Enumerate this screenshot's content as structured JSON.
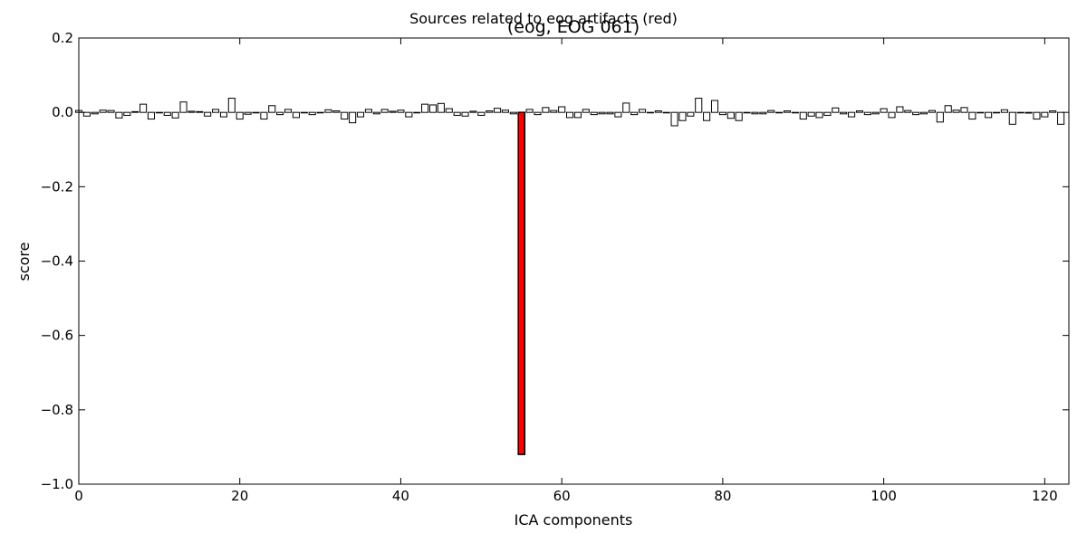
{
  "chart_data": {
    "type": "bar",
    "suptitle": "Sources related to eog artifacts (red)",
    "title": "(eog, EOG 061)",
    "xlabel": "ICA components",
    "ylabel": "score",
    "xlim": [
      0,
      123
    ],
    "ylim": [
      -1.0,
      0.2
    ],
    "xticks": [
      0,
      20,
      40,
      60,
      80,
      100,
      120
    ],
    "xtick_labels": [
      "0",
      "20",
      "40",
      "60",
      "80",
      "100",
      "120"
    ],
    "yticks": [
      0.2,
      0.0,
      -0.2,
      -0.4,
      -0.6,
      -0.8,
      -1.0
    ],
    "ytick_labels": [
      "0.2",
      "0.0",
      "−0.2",
      "−0.4",
      "−0.6",
      "−0.8",
      "−1.0"
    ],
    "bar_color": "#ffffff",
    "bar_edge_color": "#000000",
    "highlight_color": "#ff0000",
    "highlighted_components": [
      55
    ],
    "grid": false,
    "values": [
      0.005,
      -0.01,
      -0.004,
      0.006,
      0.005,
      -0.015,
      -0.008,
      0.002,
      0.022,
      -0.018,
      0.0,
      -0.008,
      -0.015,
      0.028,
      0.003,
      0.002,
      -0.01,
      0.008,
      -0.012,
      0.038,
      -0.018,
      -0.005,
      0.0,
      -0.018,
      0.018,
      -0.006,
      0.008,
      -0.014,
      0.0,
      -0.006,
      0.0,
      0.007,
      0.004,
      -0.018,
      -0.028,
      -0.012,
      0.008,
      -0.004,
      0.008,
      0.003,
      0.006,
      -0.012,
      0.0,
      0.022,
      0.02,
      0.024,
      0.01,
      -0.008,
      -0.01,
      0.003,
      -0.008,
      0.004,
      0.011,
      0.006,
      -0.004,
      -0.92,
      0.008,
      -0.006,
      0.013,
      0.005,
      0.015,
      -0.014,
      -0.014,
      0.008,
      -0.006,
      -0.004,
      -0.004,
      -0.012,
      0.025,
      -0.006,
      0.008,
      0.0,
      0.004,
      0.0,
      -0.036,
      -0.022,
      -0.01,
      0.038,
      -0.022,
      0.032,
      -0.006,
      -0.016,
      -0.022,
      0.0,
      -0.004,
      -0.004,
      0.005,
      0.0,
      0.004,
      0.0,
      -0.018,
      -0.01,
      -0.014,
      -0.008,
      0.012,
      -0.004,
      -0.012,
      0.004,
      -0.006,
      -0.004,
      0.01,
      -0.014,
      0.015,
      0.005,
      -0.006,
      -0.004,
      0.005,
      -0.026,
      0.018,
      0.006,
      0.013,
      -0.018,
      0.0,
      -0.014,
      0.0,
      0.007,
      -0.032,
      0.0,
      -0.002,
      -0.018,
      -0.012,
      0.004,
      -0.032
    ]
  }
}
